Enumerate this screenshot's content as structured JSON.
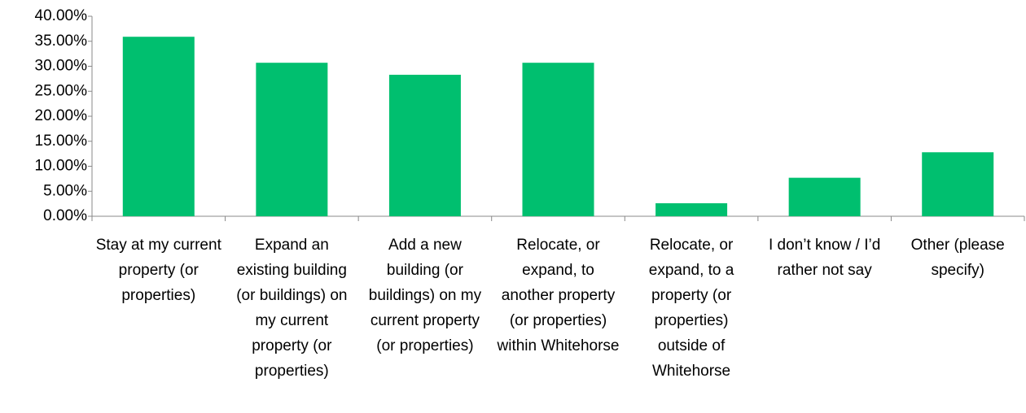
{
  "chart_data": {
    "type": "bar",
    "categories": [
      "Stay at my current property (or properties)",
      "Expand an existing building (or buildings) on my current property (or properties)",
      "Add a new building (or buildings) on my current property (or properties)",
      "Relocate, or expand, to another property (or properties) within Whitehorse",
      "Relocate, or expand, to a property (or properties) outside of Whitehorse",
      "I don’t know / I’d rather not say",
      "Other (please specify)"
    ],
    "values": [
      35.9,
      30.7,
      28.3,
      30.7,
      2.6,
      7.7,
      12.8
    ],
    "color": "#00bf6f",
    "ylim": [
      0,
      40
    ],
    "yticks": [
      {
        "value": 0,
        "label": "0.00%"
      },
      {
        "value": 5,
        "label": "5.00%"
      },
      {
        "value": 10,
        "label": "10.00%"
      },
      {
        "value": 15,
        "label": "15.00%"
      },
      {
        "value": 20,
        "label": "20.00%"
      },
      {
        "value": 25,
        "label": "25.00%"
      },
      {
        "value": 30,
        "label": "30.00%"
      },
      {
        "value": 35,
        "label": "35.00%"
      },
      {
        "value": 40,
        "label": "40.00%"
      }
    ],
    "grid": false
  }
}
